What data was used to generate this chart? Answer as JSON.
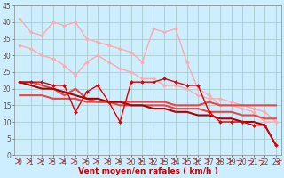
{
  "background_color": "#cceeff",
  "grid_color": "#aacccc",
  "xlabel": "Vent moyen/en rafales ( km/h )",
  "xlim": [
    -0.5,
    23.5
  ],
  "ylim": [
    0,
    45
  ],
  "yticks": [
    0,
    5,
    10,
    15,
    20,
    25,
    30,
    35,
    40,
    45
  ],
  "xticks": [
    0,
    1,
    2,
    3,
    4,
    5,
    6,
    7,
    8,
    9,
    10,
    11,
    12,
    13,
    14,
    15,
    16,
    17,
    18,
    19,
    20,
    21,
    22,
    23
  ],
  "lines": [
    {
      "x": [
        0,
        1,
        2,
        3,
        4,
        5,
        6,
        7,
        8,
        9,
        10,
        11,
        12,
        13,
        14,
        15,
        16,
        17,
        18,
        19,
        20,
        21,
        22,
        23
      ],
      "y": [
        41,
        37,
        36,
        40,
        39,
        40,
        35,
        34,
        33,
        32,
        31,
        28,
        38,
        37,
        38,
        28,
        20,
        18,
        15,
        15,
        14,
        13,
        10,
        10
      ],
      "color": "#ffaaaa",
      "lw": 1.0,
      "marker": "D",
      "ms": 2.0,
      "zorder": 2
    },
    {
      "x": [
        0,
        1,
        2,
        3,
        4,
        5,
        6,
        7,
        8,
        9,
        10,
        11,
        12,
        13,
        14,
        15,
        16,
        17,
        18,
        19,
        20,
        21,
        22,
        23
      ],
      "y": [
        33,
        32,
        30,
        29,
        27,
        24,
        28,
        30,
        28,
        26,
        25,
        23,
        23,
        21,
        21,
        20,
        18,
        17,
        17,
        16,
        15,
        14,
        13,
        10
      ],
      "color": "#ffaaaa",
      "lw": 1.0,
      "marker": "D",
      "ms": 2.0,
      "zorder": 2
    },
    {
      "x": [
        0,
        1,
        2,
        3,
        4,
        5,
        6,
        7,
        8,
        9,
        10,
        11,
        12,
        13,
        14,
        15,
        16,
        17,
        18,
        19,
        20,
        21,
        22,
        23
      ],
      "y": [
        22,
        22,
        22,
        21,
        21,
        13,
        19,
        21,
        16,
        10,
        22,
        22,
        22,
        23,
        22,
        21,
        21,
        13,
        10,
        10,
        10,
        9,
        9,
        3
      ],
      "color": "#dd0000",
      "lw": 1.0,
      "marker": "D",
      "ms": 2.0,
      "zorder": 4
    },
    {
      "x": [
        0,
        1,
        2,
        3,
        4,
        5,
        6,
        7,
        8,
        9,
        10,
        11,
        12,
        13,
        14,
        15,
        16,
        17,
        18,
        19,
        20,
        21,
        22,
        23
      ],
      "y": [
        22,
        22,
        21,
        20,
        18,
        20,
        17,
        16,
        16,
        16,
        16,
        16,
        16,
        16,
        15,
        15,
        15,
        16,
        15,
        15,
        15,
        15,
        15,
        15
      ],
      "color": "#ee4444",
      "lw": 1.5,
      "marker": null,
      "ms": 0,
      "zorder": 3
    },
    {
      "x": [
        0,
        1,
        2,
        3,
        4,
        5,
        6,
        7,
        8,
        9,
        10,
        11,
        12,
        13,
        14,
        15,
        16,
        17,
        18,
        19,
        20,
        21,
        22,
        23
      ],
      "y": [
        18,
        18,
        18,
        17,
        17,
        17,
        16,
        16,
        16,
        15,
        15,
        15,
        15,
        15,
        14,
        14,
        14,
        13,
        13,
        13,
        12,
        12,
        11,
        11
      ],
      "color": "#ee4444",
      "lw": 1.5,
      "marker": null,
      "ms": 0,
      "zorder": 3
    },
    {
      "x": [
        0,
        1,
        2,
        3,
        4,
        5,
        6,
        7,
        8,
        9,
        10,
        11,
        12,
        13,
        14,
        15,
        16,
        17,
        18,
        19,
        20,
        21,
        22,
        23
      ],
      "y": [
        22,
        21,
        20,
        20,
        19,
        18,
        17,
        17,
        16,
        16,
        15,
        15,
        14,
        14,
        13,
        13,
        12,
        12,
        11,
        11,
        10,
        10,
        9,
        3
      ],
      "color": "#aa0000",
      "lw": 1.5,
      "marker": null,
      "ms": 0,
      "zorder": 3
    }
  ],
  "arrows": {
    "color": "#cc2222",
    "angles_deg": [
      0,
      0,
      0,
      0,
      0,
      0,
      0,
      0,
      0,
      0,
      0,
      0,
      0,
      0,
      0,
      0,
      0,
      0,
      0,
      0,
      45,
      45,
      45,
      135
    ]
  },
  "tick_fontsize": 5.5,
  "xlabel_fontsize": 6.5
}
